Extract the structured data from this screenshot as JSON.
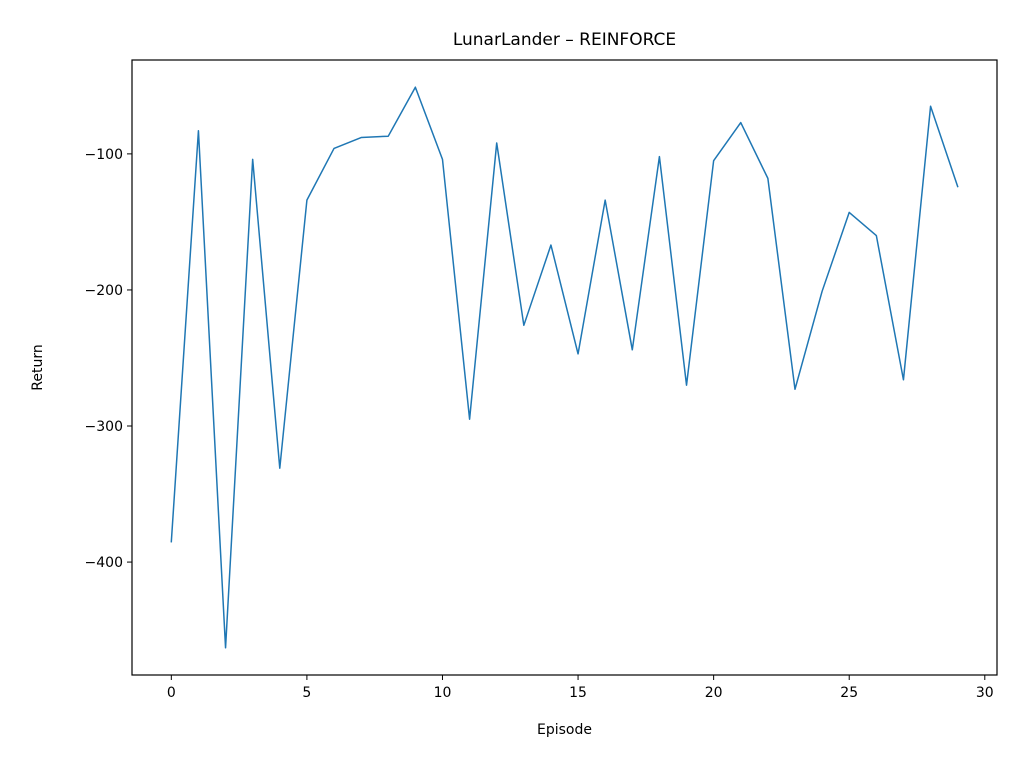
{
  "chart_data": {
    "type": "line",
    "title": "LunarLander – REINFORCE",
    "xlabel": "Episode",
    "ylabel": "Return",
    "xlim": [
      -1.45,
      30.45
    ],
    "ylim": [
      -483,
      -31
    ],
    "xticks": [
      0,
      5,
      10,
      15,
      20,
      25,
      30
    ],
    "yticks": [
      -400,
      -300,
      -200,
      -100
    ],
    "ytick_labels": [
      "−400",
      "−300",
      "−200",
      "−100"
    ],
    "grid": false,
    "series": [
      {
        "color": "#1f77b4",
        "x": [
          0,
          1,
          2,
          3,
          4,
          5,
          6,
          7,
          8,
          9,
          10,
          11,
          12,
          13,
          14,
          15,
          16,
          17,
          18,
          19,
          20,
          21,
          22,
          23,
          24,
          25,
          26,
          27,
          28,
          29
        ],
        "values": [
          -385,
          -83,
          -463,
          -104,
          -331,
          -134,
          -96,
          -88,
          -87,
          -51,
          -104,
          -295,
          -92,
          -226,
          -167,
          -247,
          -134,
          -244,
          -102,
          -270,
          -105,
          -77,
          -118,
          -273,
          -201,
          -143,
          -160,
          -266,
          -65,
          -124
        ]
      }
    ]
  }
}
